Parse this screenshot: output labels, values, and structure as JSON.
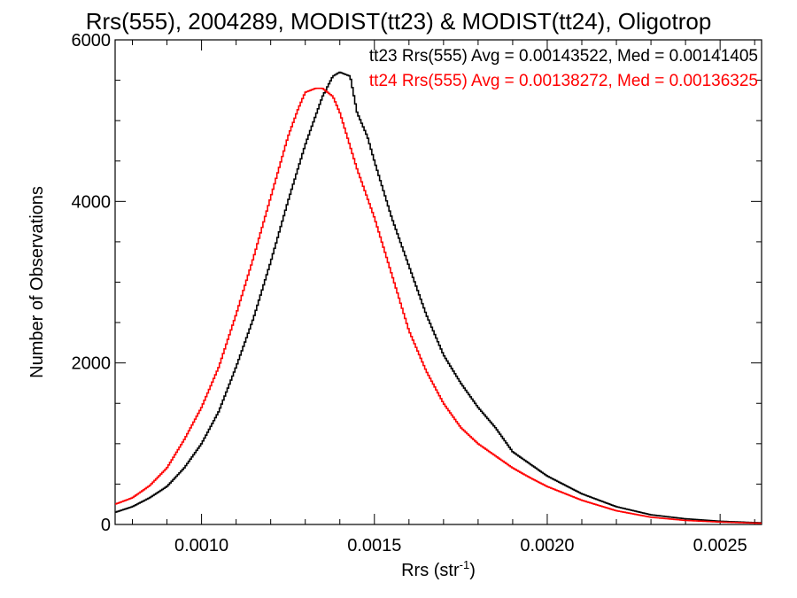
{
  "chart_data": {
    "type": "line",
    "style": "step-histogram",
    "title": "Rrs(555), 2004289, MODIST(tt23) & MODIST(tt24), Oligotrop",
    "xlabel": "Rrs (str",
    "xlabel_sup": "-1",
    "xlabel_suffix": ")",
    "ylabel": "Number of Observations",
    "xlim": [
      0.00075,
      0.00262
    ],
    "ylim": [
      0,
      6000
    ],
    "x_ticks": [
      {
        "value": 0.001,
        "label": "0.0010"
      },
      {
        "value": 0.0015,
        "label": "0.0015"
      },
      {
        "value": 0.002,
        "label": "0.0020"
      },
      {
        "value": 0.0025,
        "label": "0.0025"
      }
    ],
    "y_ticks": [
      {
        "value": 0,
        "label": "0"
      },
      {
        "value": 2000,
        "label": "2000"
      },
      {
        "value": 4000,
        "label": "4000"
      },
      {
        "value": 6000,
        "label": "6000"
      }
    ],
    "grid": false,
    "legend_position": "top-right",
    "series": [
      {
        "name": "tt23",
        "legend": "tt23 Rrs(555) Avg = 0.00143522, Med = 0.00141405",
        "color": "#000000",
        "x": [
          0.00075,
          0.0008,
          0.00085,
          0.0009,
          0.00095,
          0.001,
          0.00105,
          0.0011,
          0.00115,
          0.0012,
          0.00125,
          0.0013,
          0.00135,
          0.00138,
          0.0014,
          0.00143,
          0.00145,
          0.00148,
          0.0015,
          0.00155,
          0.0016,
          0.00165,
          0.0017,
          0.00175,
          0.0018,
          0.00185,
          0.0019,
          0.00195,
          0.002,
          0.0021,
          0.0022,
          0.0023,
          0.0024,
          0.0025,
          0.00262
        ],
        "y": [
          150,
          220,
          330,
          470,
          700,
          1000,
          1400,
          1950,
          2550,
          3250,
          4000,
          4700,
          5300,
          5550,
          5600,
          5550,
          5100,
          4800,
          4500,
          3800,
          3200,
          2600,
          2100,
          1750,
          1450,
          1200,
          900,
          750,
          600,
          380,
          220,
          120,
          70,
          40,
          20
        ]
      },
      {
        "name": "tt24",
        "legend": "tt24 Rrs(555) Avg = 0.00138272, Med = 0.00136325",
        "color": "#ff0000",
        "x": [
          0.00075,
          0.0008,
          0.00085,
          0.0009,
          0.00095,
          0.001,
          0.00105,
          0.0011,
          0.00115,
          0.0012,
          0.00125,
          0.00128,
          0.0013,
          0.00133,
          0.00135,
          0.00138,
          0.0014,
          0.00145,
          0.0015,
          0.00155,
          0.0016,
          0.00165,
          0.0017,
          0.00175,
          0.0018,
          0.00185,
          0.0019,
          0.00195,
          0.002,
          0.0021,
          0.0022,
          0.0023,
          0.0024,
          0.0025,
          0.00262
        ],
        "y": [
          250,
          330,
          480,
          700,
          1050,
          1450,
          1950,
          2600,
          3300,
          4050,
          4800,
          5150,
          5350,
          5400,
          5400,
          5300,
          5100,
          4400,
          3800,
          3100,
          2400,
          1900,
          1500,
          1200,
          1000,
          850,
          700,
          580,
          470,
          300,
          170,
          90,
          50,
          30,
          15
        ]
      }
    ]
  }
}
